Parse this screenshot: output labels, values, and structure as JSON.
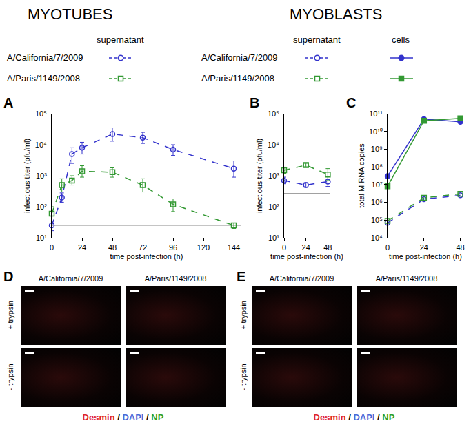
{
  "headers": {
    "left": "MYOTUBES",
    "right": "MYOBLASTS"
  },
  "legend": {
    "strains": [
      {
        "name": "A/California/7/2009",
        "color": "#3333cc",
        "marker": "circle"
      },
      {
        "name": "A/Paris/1149/2008",
        "color": "#339933",
        "marker": "square"
      }
    ],
    "left_columns": [
      {
        "text": "supernatant",
        "line_style": "dashed",
        "marker": "open"
      }
    ],
    "right_columns": [
      {
        "text": "supernatant",
        "line_style": "dashed",
        "marker": "open"
      },
      {
        "text": "cells",
        "line_style": "solid",
        "marker": "filled"
      }
    ]
  },
  "chart_data": [
    {
      "panel": "A",
      "type": "line",
      "x_label": "time post-infection (h)",
      "y_label": "infectious titer (pfu/ml)",
      "log": "y",
      "grid": false,
      "xlim": [
        0,
        150
      ],
      "xticks": [
        0,
        24,
        48,
        72,
        96,
        120,
        144
      ],
      "ylim": [
        10,
        100000
      ],
      "yticks": [
        {
          "value": 10,
          "label": "10¹"
        },
        {
          "value": 100,
          "label": "10²"
        },
        {
          "value": 1000,
          "label": "10³"
        },
        {
          "value": 10000,
          "label": "10⁴"
        },
        {
          "value": 100000,
          "label": "10⁵"
        }
      ],
      "detection_limit": 25,
      "series": [
        {
          "name": "A/California/7/2009",
          "group": "supernatant",
          "color": "#3333cc",
          "marker": "open circle",
          "line_style": "dashed",
          "x": [
            0,
            8,
            16,
            24,
            48,
            72,
            96,
            144
          ],
          "values": [
            25,
            200,
            5000,
            8000,
            22000,
            17000,
            7000,
            1700
          ],
          "error_plus": [
            10,
            80,
            3000,
            4000,
            13000,
            8000,
            3000,
            1300
          ],
          "error_minus": [
            8,
            60,
            2500,
            3000,
            9000,
            6000,
            2500,
            800
          ]
        },
        {
          "name": "A/Paris/1149/2008",
          "group": "supernatant",
          "color": "#339933",
          "marker": "open square",
          "line_style": "dashed",
          "x": [
            0,
            8,
            16,
            24,
            48,
            72,
            96,
            144
          ],
          "values": [
            60,
            500,
            700,
            1400,
            1300,
            500,
            120,
            25
          ],
          "error_plus": [
            40,
            300,
            300,
            700,
            500,
            300,
            60,
            5
          ],
          "error_minus": [
            25,
            200,
            200,
            500,
            400,
            200,
            50,
            5
          ]
        }
      ]
    },
    {
      "panel": "B",
      "type": "line",
      "x_label": "time post-infection (h)",
      "y_label": "infectious titer (pfu/ml)",
      "log": "y",
      "grid": false,
      "xlim": [
        0,
        50
      ],
      "xticks": [
        0,
        24,
        48
      ],
      "ylim": [
        10,
        100000
      ],
      "yticks": [
        {
          "value": 10,
          "label": "10¹"
        },
        {
          "value": 100,
          "label": "10²"
        },
        {
          "value": 1000,
          "label": "10³"
        },
        {
          "value": 10000,
          "label": "10⁴"
        },
        {
          "value": 100000,
          "label": "10⁵"
        }
      ],
      "detection_limit": 270,
      "series": [
        {
          "name": "A/California/7/2009",
          "group": "supernatant",
          "color": "#3333cc",
          "marker": "open circle",
          "line_style": "dashed",
          "x": [
            0,
            24,
            48
          ],
          "values": [
            700,
            500,
            650
          ],
          "error_plus": [
            200,
            100,
            300
          ],
          "error_minus": [
            150,
            80,
            200
          ]
        },
        {
          "name": "A/Paris/1149/2008",
          "group": "supernatant",
          "color": "#339933",
          "marker": "open square",
          "line_style": "dashed",
          "x": [
            0,
            24,
            48
          ],
          "values": [
            1500,
            2200,
            1100
          ],
          "error_plus": [
            400,
            300,
            600
          ],
          "error_minus": [
            300,
            250,
            400
          ]
        }
      ]
    },
    {
      "panel": "C",
      "type": "line",
      "x_label": "time post-infection (h)",
      "y_label": "total M RNA copies",
      "log": "y",
      "grid": false,
      "xlim": [
        0,
        50
      ],
      "xticks": [
        0,
        24,
        48
      ],
      "ylim": [
        10000,
        100000000000
      ],
      "yticks": [
        {
          "value": 10000,
          "label": "10⁴"
        },
        {
          "value": 100000,
          "label": "10⁵"
        },
        {
          "value": 1000000,
          "label": "10⁶"
        },
        {
          "value": 10000000,
          "label": "10⁷"
        },
        {
          "value": 100000000,
          "label": "10⁸"
        },
        {
          "value": 1000000000,
          "label": "10⁹"
        },
        {
          "value": 10000000000,
          "label": "10¹⁰"
        },
        {
          "value": 100000000000,
          "label": "10¹¹"
        }
      ],
      "series": [
        {
          "name": "A/California/7/2009",
          "group": "supernatant",
          "color": "#3333cc",
          "marker": "open circle",
          "line_style": "dashed",
          "x": [
            0,
            24,
            48
          ],
          "values": [
            70000,
            1500000,
            2500000
          ]
        },
        {
          "name": "A/Paris/1149/2008",
          "group": "supernatant",
          "color": "#339933",
          "marker": "open square",
          "line_style": "dashed",
          "x": [
            0,
            24,
            48
          ],
          "values": [
            90000,
            1800000,
            3000000
          ]
        },
        {
          "name": "A/California/7/2009",
          "group": "cells",
          "color": "#3333cc",
          "marker": "filled circle",
          "line_style": "solid",
          "x": [
            0,
            24,
            48
          ],
          "values": [
            30000000,
            50000000000,
            35000000000
          ]
        },
        {
          "name": "A/Paris/1149/2008",
          "group": "cells",
          "color": "#339933",
          "marker": "filled square",
          "line_style": "solid",
          "x": [
            0,
            24,
            48
          ],
          "values": [
            8000000,
            40000000000,
            55000000000
          ]
        }
      ]
    }
  ],
  "micrographs": [
    {
      "panel": "D",
      "columns": [
        "A/California/7/2009",
        "A/Paris/1149/2008"
      ],
      "rows": [
        "+ trypsin",
        "- trypsin"
      ]
    },
    {
      "panel": "E",
      "columns": [
        "A/California/7/2009",
        "A/Paris/1149/2008"
      ],
      "rows": [
        "+ trypsin",
        "- trypsin"
      ]
    }
  ],
  "stain": {
    "parts": [
      {
        "text": "Desmin",
        "color": "#e0262a"
      },
      {
        "text": "DAPI",
        "color": "#4a6bd8"
      },
      {
        "text": "NP",
        "color": "#2aa02a"
      }
    ],
    "separator": " / "
  }
}
